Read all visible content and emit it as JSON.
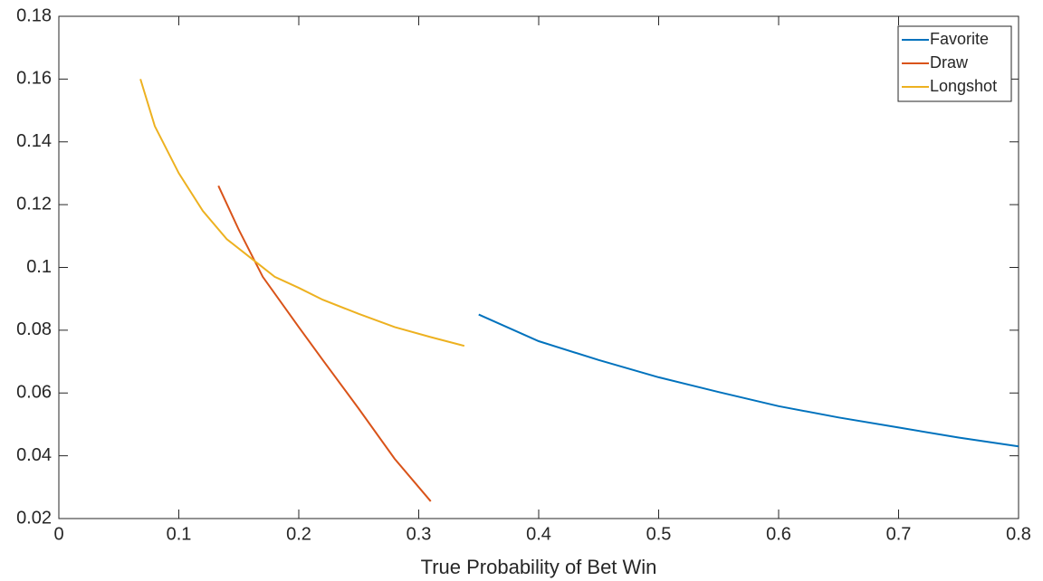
{
  "chart_data": {
    "type": "line",
    "x_label": "True Probability of Bet Win",
    "series": [
      {
        "name": "Favorite",
        "color": "#0072BD",
        "x": [
          0.35,
          0.4,
          0.45,
          0.5,
          0.55,
          0.6,
          0.65,
          0.7,
          0.75,
          0.8
        ],
        "values": [
          0.085,
          0.0765,
          0.0705,
          0.065,
          0.0603,
          0.0558,
          0.0522,
          0.049,
          0.0458,
          0.043
        ]
      },
      {
        "name": "Draw",
        "color": "#D95319",
        "x": [
          0.133,
          0.15,
          0.17,
          0.2,
          0.22,
          0.25,
          0.28,
          0.31
        ],
        "values": [
          0.126,
          0.112,
          0.097,
          0.081,
          0.0705,
          0.055,
          0.039,
          0.0255
        ]
      },
      {
        "name": "Longshot",
        "color": "#EDB120",
        "x": [
          0.068,
          0.08,
          0.1,
          0.12,
          0.14,
          0.16,
          0.18,
          0.2,
          0.22,
          0.25,
          0.28,
          0.31,
          0.338
        ],
        "values": [
          0.16,
          0.145,
          0.13,
          0.118,
          0.109,
          0.103,
          0.097,
          0.0935,
          0.0897,
          0.0852,
          0.081,
          0.0778,
          0.075
        ]
      }
    ],
    "xlim": [
      0,
      0.8
    ],
    "xticks": [
      0,
      0.1,
      0.2,
      0.3,
      0.4,
      0.5,
      0.6,
      0.7,
      0.8
    ],
    "ylim": [
      0.02,
      0.18
    ],
    "yticks": [
      0.02,
      0.04,
      0.06,
      0.08,
      0.1,
      0.12,
      0.14,
      0.16,
      0.18
    ],
    "grid": false,
    "legend": "northeast"
  }
}
